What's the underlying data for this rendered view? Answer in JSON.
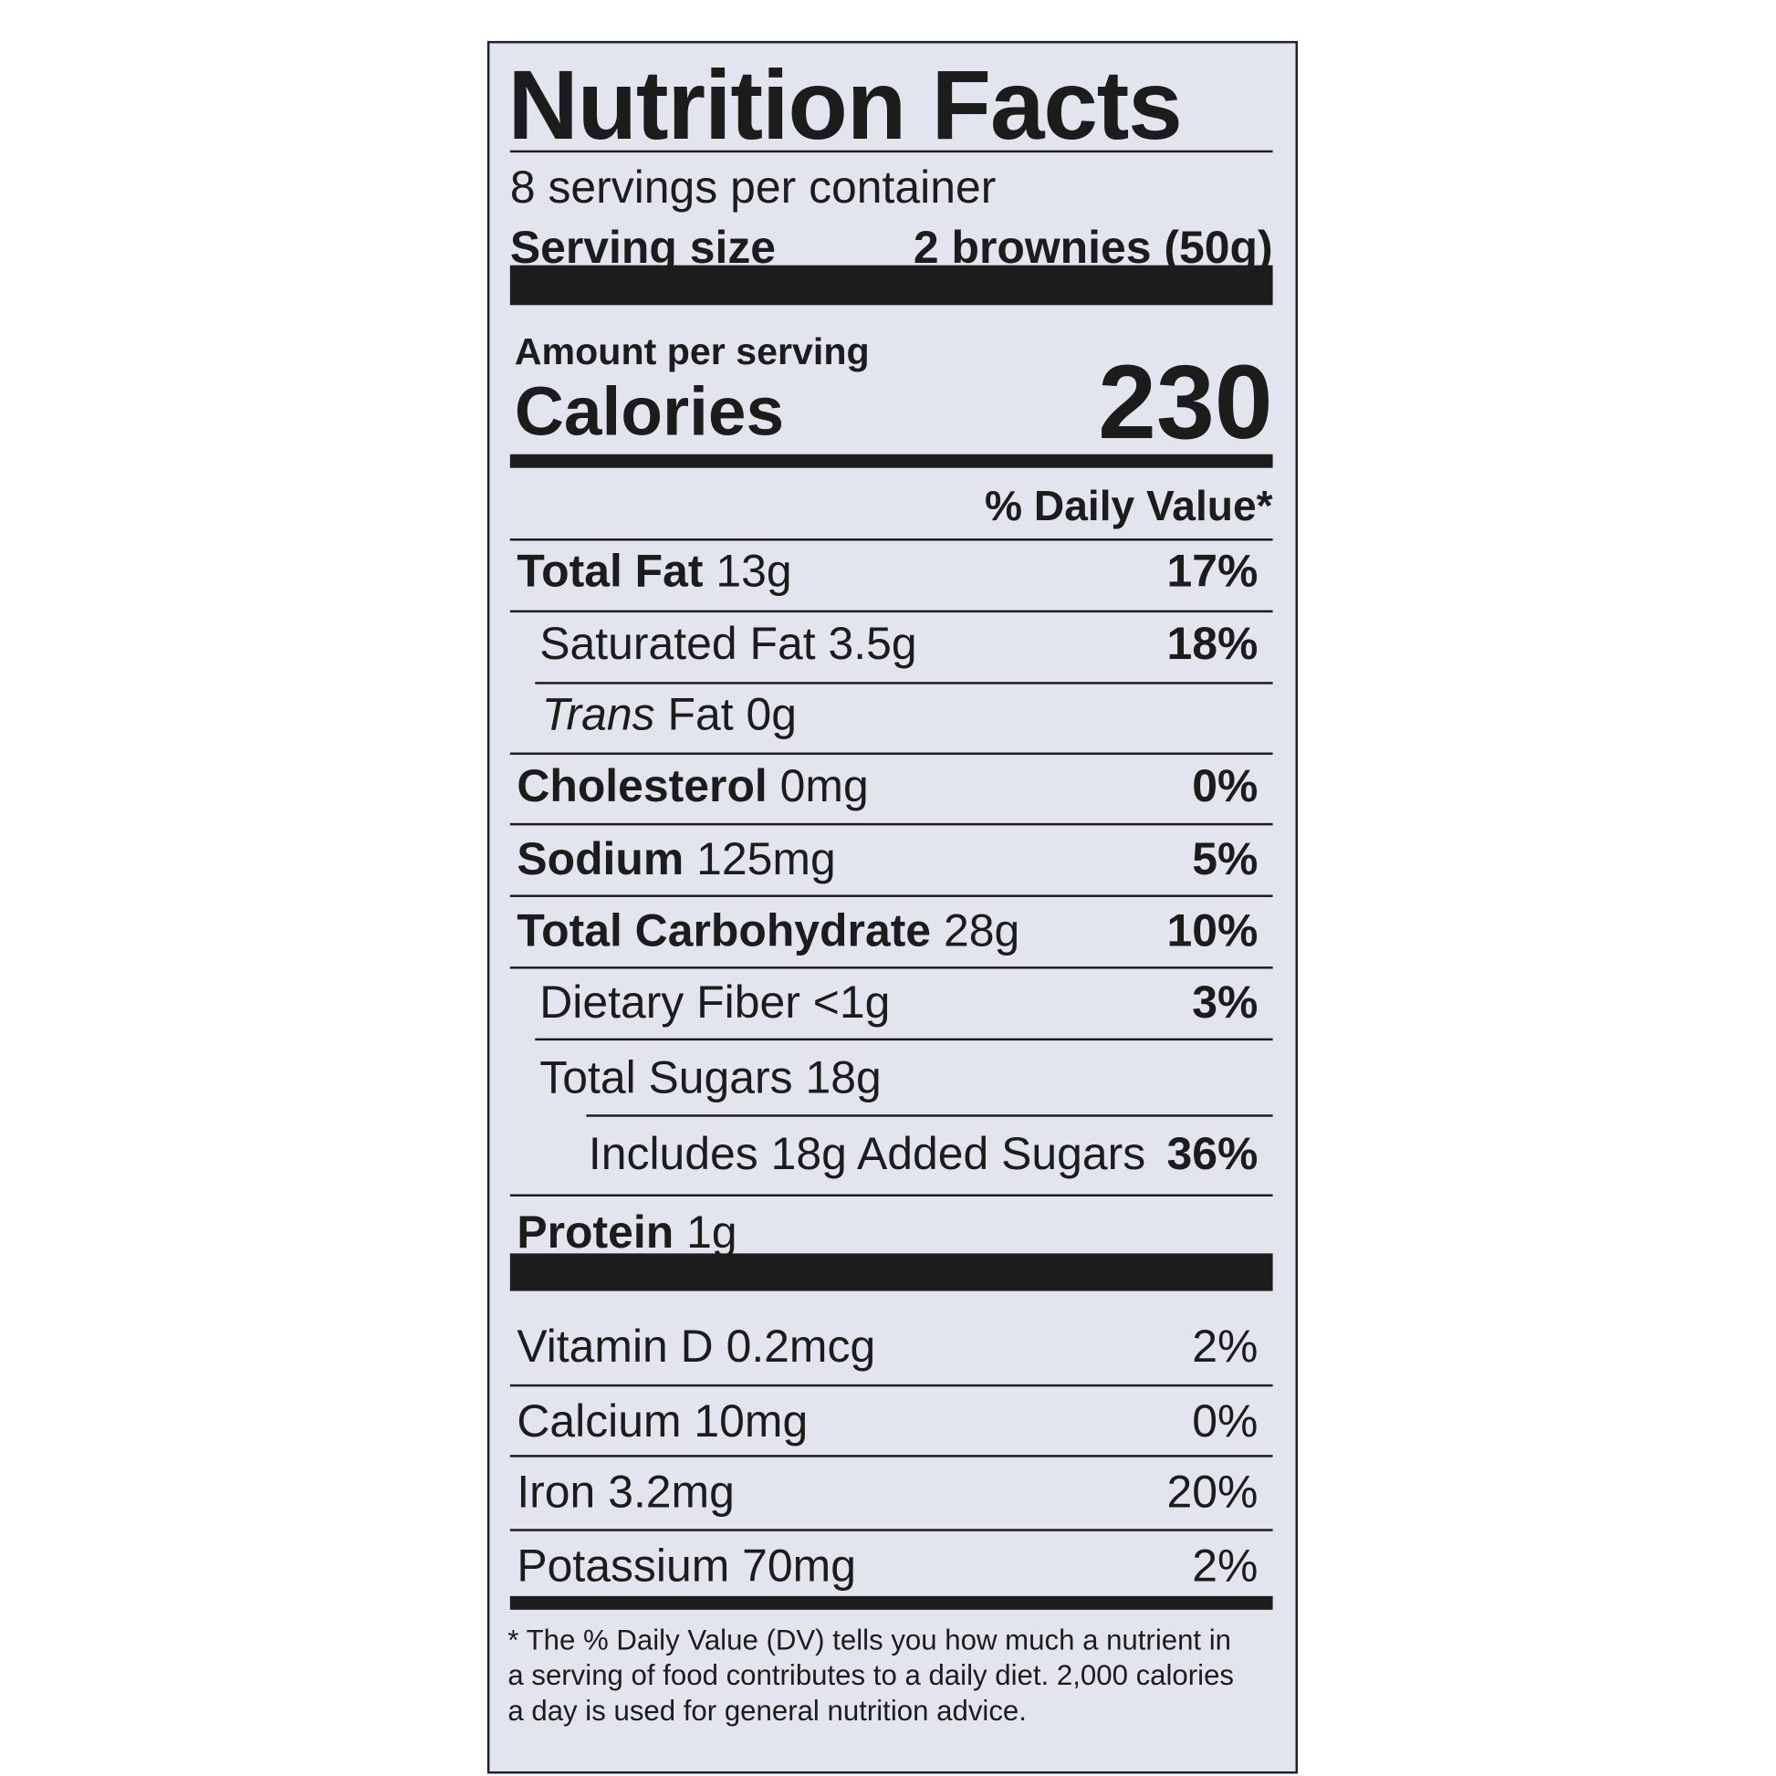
{
  "header": {
    "title": "Nutrition Facts",
    "servings": "8 servings per container",
    "serving_size_label": "Serving size",
    "serving_size_value": "2 brownies (50g)"
  },
  "calories": {
    "amount_label": "Amount per serving",
    "label": "Calories",
    "value": "230"
  },
  "daily_value_header": "% Daily Value*",
  "nutrients": [
    {
      "name": "Total Fat",
      "amount": "13g",
      "dv": "17%"
    },
    {
      "name": "Saturated Fat",
      "amount": "3.5g",
      "dv": "18%"
    },
    {
      "name_italic": "Trans",
      "name": "Fat",
      "amount": "0g"
    },
    {
      "name": "Cholesterol",
      "amount": "0mg",
      "dv": "0%"
    },
    {
      "name": "Sodium",
      "amount": "125mg",
      "dv": "5%"
    },
    {
      "name": "Total Carbohydrate",
      "amount": "28g",
      "dv": "10%"
    },
    {
      "name": "Dietary Fiber",
      "amount": "<1g",
      "dv": "3%"
    },
    {
      "name": "Total Sugars",
      "amount": "18g"
    },
    {
      "name": "Includes 18g Added Sugars",
      "dv": "36%"
    },
    {
      "name": "Protein",
      "amount": "1g"
    }
  ],
  "vitamins": [
    {
      "name": "Vitamin D",
      "amount": "0.2mcg",
      "dv": "2%"
    },
    {
      "name": "Calcium",
      "amount": "10mg",
      "dv": "0%"
    },
    {
      "name": "Iron",
      "amount": "3.2mg",
      "dv": "20%"
    },
    {
      "name": "Potassium",
      "amount": "70mg",
      "dv": "2%"
    }
  ],
  "footnote": [
    "* The % Daily Value (DV) tells you how much a nutrient in",
    "a serving of food contributes to a daily diet. 2,000 calories",
    "a day is used for general nutrition advice."
  ]
}
